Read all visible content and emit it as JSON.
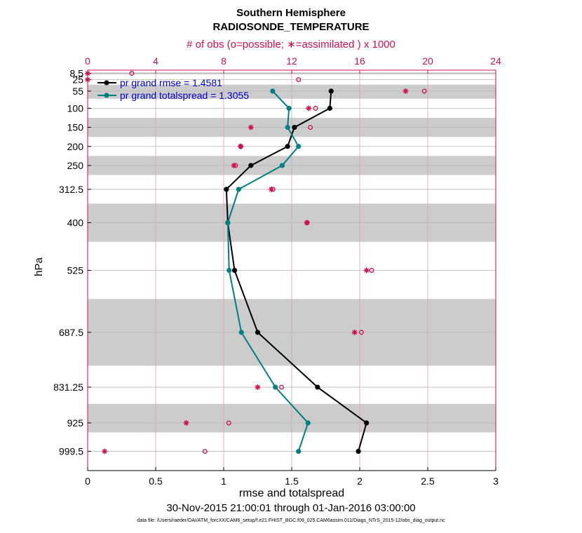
{
  "chart_data": {
    "type": "line",
    "title": "Southern Hemisphere",
    "subtitle": "RADIOSONDE_TEMPERATURE",
    "top_axis_label": "# of obs (o=possible; ∗=assimilated ) x 1000",
    "xlabel": "rmse and totalspread",
    "ylabel": "hPa",
    "date_range": "30-Nov-2015 21:00:01 through 01-Jan-2016 03:00:00",
    "data_file": "data file: /Users/raeder/DAI/ATM_forcXX/CAM6_setup/f.e21.FHIST_BGC.f09_025.CAM6assim.011/Diags_NTrS_2015-12/obs_diag_output.nc",
    "xlim": [
      0,
      3
    ],
    "xticks": [
      "0",
      "0.5",
      "1",
      "1.5",
      "2",
      "2.5",
      "3"
    ],
    "top_xlim": [
      0,
      24
    ],
    "top_xticks": [
      "0",
      "4",
      "8",
      "12",
      "16",
      "20",
      "24"
    ],
    "ylim_hPa": [
      1050,
      0
    ],
    "levels": [
      "8.5",
      "25",
      "55",
      "100",
      "150",
      "200",
      "250",
      "312.5",
      "400",
      "525",
      "687.5",
      "831.25",
      "925",
      "999.5"
    ],
    "level_values": [
      8.5,
      25,
      55,
      100,
      150,
      200,
      250,
      312.5,
      400,
      525,
      687.5,
      831.25,
      925,
      999.5
    ],
    "layer_bands_hPa": [
      [
        6,
        11
      ],
      [
        38,
        75
      ],
      [
        125,
        175
      ],
      [
        225,
        275
      ],
      [
        350,
        450
      ],
      [
        600,
        775
      ],
      [
        875,
        950
      ]
    ],
    "legend": [
      {
        "label": "pr grand rmse = 1.4581",
        "color": "#000000"
      },
      {
        "label": "pr grand totalspread = 1.3055",
        "color": "#008080"
      }
    ],
    "series": [
      {
        "name": "pr grand rmse",
        "color": "#000000",
        "points": [
          [
            1.79,
            55
          ],
          [
            1.78,
            100
          ],
          [
            1.52,
            150
          ],
          [
            1.47,
            200
          ],
          [
            1.2,
            250
          ],
          [
            1.02,
            312.5
          ],
          [
            1.03,
            400
          ],
          [
            1.08,
            525
          ],
          [
            1.25,
            687.5
          ],
          [
            1.69,
            831.25
          ],
          [
            2.05,
            925
          ],
          [
            1.99,
            999.5
          ]
        ]
      },
      {
        "name": "pr grand totalspread",
        "color": "#008080",
        "points": [
          [
            1.36,
            55
          ],
          [
            1.48,
            100
          ],
          [
            1.47,
            150
          ],
          [
            1.55,
            200
          ],
          [
            1.43,
            250
          ],
          [
            1.11,
            312.5
          ],
          [
            1.03,
            400
          ],
          [
            1.04,
            525
          ],
          [
            1.13,
            687.5
          ],
          [
            1.38,
            831.25
          ],
          [
            1.62,
            925
          ],
          [
            1.55,
            999.5
          ]
        ]
      }
    ],
    "obs_possible_x1000": [
      [
        2.6,
        8.5
      ],
      [
        12.4,
        25
      ],
      [
        19.8,
        55
      ],
      [
        13.4,
        100
      ],
      [
        13.1,
        150
      ],
      [
        9.0,
        200
      ],
      [
        8.7,
        250
      ],
      [
        10.9,
        312.5
      ],
      [
        12.9,
        400
      ],
      [
        16.7,
        525
      ],
      [
        16.1,
        687.5
      ],
      [
        11.4,
        831.25
      ],
      [
        8.3,
        925
      ],
      [
        6.9,
        999.5
      ]
    ],
    "obs_assimilated_x1000": [
      [
        0.0,
        8.5
      ],
      [
        0.0,
        25
      ],
      [
        18.7,
        55
      ],
      [
        13.0,
        100
      ],
      [
        9.6,
        150
      ],
      [
        9.0,
        200
      ],
      [
        8.6,
        250
      ],
      [
        10.8,
        312.5
      ],
      [
        12.9,
        400
      ],
      [
        16.4,
        525
      ],
      [
        15.7,
        687.5
      ],
      [
        10.0,
        831.25
      ],
      [
        5.8,
        925
      ],
      [
        1.0,
        999.5
      ]
    ]
  }
}
